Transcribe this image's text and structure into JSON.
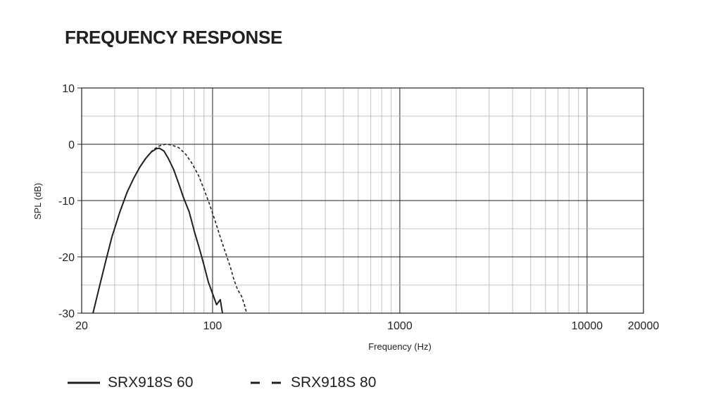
{
  "title": "FREQUENCY RESPONSE",
  "chart_data": {
    "type": "line",
    "title": "FREQUENCY RESPONSE",
    "xlabel": "Frequency (Hz)",
    "ylabel": "SPL (dB)",
    "x_scale": "log",
    "xlim": [
      20,
      20000
    ],
    "ylim": [
      -30,
      10
    ],
    "xticks": [
      20,
      100,
      1000,
      10000,
      20000
    ],
    "yticks": [
      10,
      0,
      -10,
      -20,
      -30
    ],
    "grid": true,
    "legend_position": "bottom",
    "series": [
      {
        "name": "SRX918S 60",
        "style": "solid",
        "points": [
          [
            23,
            -30
          ],
          [
            25,
            -25
          ],
          [
            27,
            -20.5
          ],
          [
            29,
            -16.5
          ],
          [
            32,
            -12
          ],
          [
            35,
            -8.5
          ],
          [
            38,
            -6
          ],
          [
            41,
            -4
          ],
          [
            44,
            -2.5
          ],
          [
            47,
            -1.4
          ],
          [
            50,
            -0.8
          ],
          [
            52,
            -0.7
          ],
          [
            55,
            -1.2
          ],
          [
            58,
            -2.5
          ],
          [
            62,
            -4.5
          ],
          [
            66,
            -7
          ],
          [
            70,
            -9.5
          ],
          [
            75,
            -12
          ],
          [
            80,
            -15.5
          ],
          [
            85,
            -18.5
          ],
          [
            90,
            -21.5
          ],
          [
            95,
            -24.5
          ],
          [
            100,
            -26.5
          ],
          [
            105,
            -28.5
          ],
          [
            110,
            -27.6
          ],
          [
            113,
            -30
          ]
        ]
      },
      {
        "name": "SRX918S 80",
        "style": "dashed",
        "points": [
          [
            23,
            -30
          ],
          [
            25,
            -25
          ],
          [
            27,
            -20.5
          ],
          [
            29,
            -16.5
          ],
          [
            32,
            -12
          ],
          [
            35,
            -8.5
          ],
          [
            38,
            -6
          ],
          [
            41,
            -4
          ],
          [
            44,
            -2.5
          ],
          [
            48,
            -1
          ],
          [
            52,
            -0.3
          ],
          [
            56,
            0
          ],
          [
            60,
            -0.1
          ],
          [
            66,
            -0.6
          ],
          [
            72,
            -1.8
          ],
          [
            78,
            -3.5
          ],
          [
            84,
            -5.5
          ],
          [
            90,
            -8
          ],
          [
            96,
            -10.5
          ],
          [
            103,
            -13.5
          ],
          [
            110,
            -16.5
          ],
          [
            118,
            -19.5
          ],
          [
            125,
            -22
          ],
          [
            130,
            -24
          ],
          [
            136,
            -25.8
          ],
          [
            143,
            -27
          ],
          [
            148,
            -28.5
          ],
          [
            152,
            -30
          ]
        ]
      }
    ]
  },
  "legend": [
    {
      "label": "SRX918S 60",
      "style": "solid"
    },
    {
      "label": "SRX918S 80",
      "style": "dashed"
    }
  ],
  "colors": {
    "line": "#231f20",
    "grid": "#b3b3b3",
    "axis": "#231f20"
  }
}
